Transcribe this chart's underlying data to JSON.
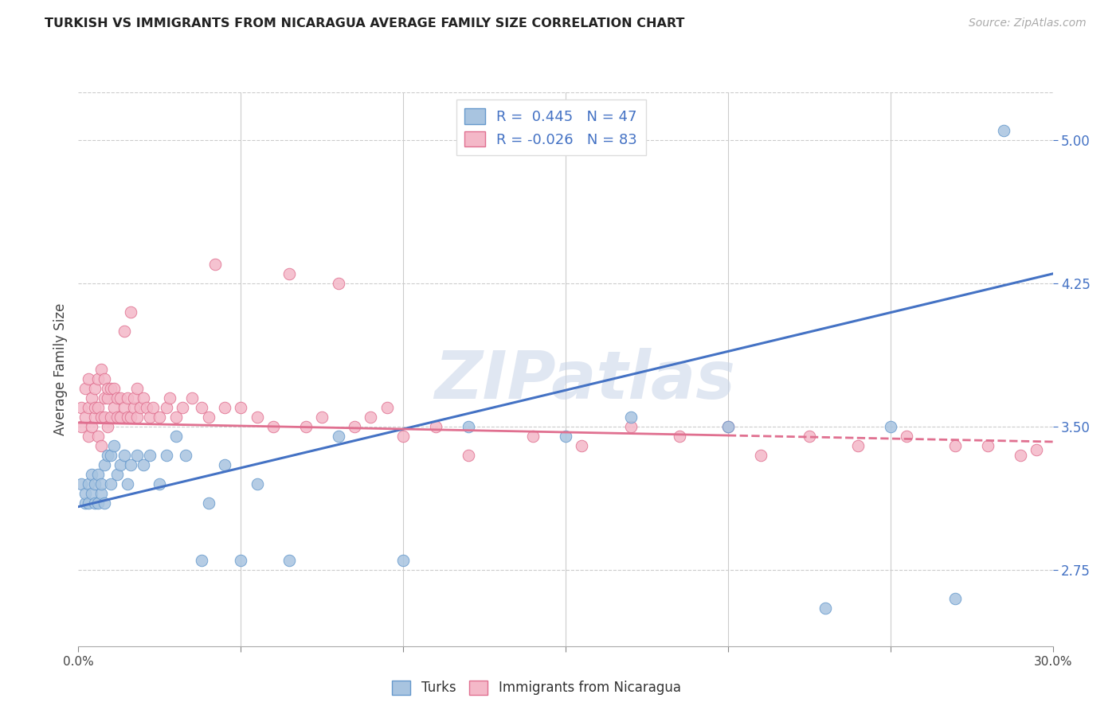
{
  "title": "TURKISH VS IMMIGRANTS FROM NICARAGUA AVERAGE FAMILY SIZE CORRELATION CHART",
  "source": "Source: ZipAtlas.com",
  "ylabel": "Average Family Size",
  "yticks": [
    2.75,
    3.5,
    4.25,
    5.0
  ],
  "xlim": [
    0.0,
    0.3
  ],
  "ylim": [
    2.35,
    5.25
  ],
  "turks_color": "#A8C4E0",
  "turks_edge": "#6699CC",
  "nicaragua_color": "#F4B8C8",
  "nicaragua_edge": "#E07090",
  "line_blue": "#4472C4",
  "line_pink": "#E07090",
  "watermark": "ZIPatlas",
  "turks_R": 0.445,
  "turks_N": 47,
  "nicaragua_R": -0.026,
  "nicaragua_N": 83,
  "turks_line_x0": 0.0,
  "turks_line_y0": 3.08,
  "turks_line_x1": 0.3,
  "turks_line_y1": 4.3,
  "nicaragua_line_x0": 0.0,
  "nicaragua_line_y0": 3.52,
  "nicaragua_line_x1": 0.3,
  "nicaragua_line_y1": 3.42,
  "turks_x": [
    0.001,
    0.002,
    0.002,
    0.003,
    0.003,
    0.004,
    0.004,
    0.005,
    0.005,
    0.006,
    0.006,
    0.007,
    0.007,
    0.008,
    0.008,
    0.009,
    0.01,
    0.01,
    0.011,
    0.012,
    0.013,
    0.014,
    0.015,
    0.016,
    0.018,
    0.02,
    0.022,
    0.025,
    0.027,
    0.03,
    0.033,
    0.038,
    0.04,
    0.045,
    0.05,
    0.055,
    0.065,
    0.08,
    0.1,
    0.12,
    0.15,
    0.17,
    0.2,
    0.23,
    0.25,
    0.27,
    0.285
  ],
  "turks_y": [
    3.2,
    3.1,
    3.15,
    3.1,
    3.2,
    3.15,
    3.25,
    3.1,
    3.2,
    3.25,
    3.1,
    3.15,
    3.2,
    3.3,
    3.1,
    3.35,
    3.2,
    3.35,
    3.4,
    3.25,
    3.3,
    3.35,
    3.2,
    3.3,
    3.35,
    3.3,
    3.35,
    3.2,
    3.35,
    3.45,
    3.35,
    2.8,
    3.1,
    3.3,
    2.8,
    3.2,
    2.8,
    3.45,
    2.8,
    3.5,
    3.45,
    3.55,
    3.5,
    2.55,
    3.5,
    2.6,
    5.05
  ],
  "nicaragua_x": [
    0.001,
    0.001,
    0.002,
    0.002,
    0.003,
    0.003,
    0.003,
    0.004,
    0.004,
    0.005,
    0.005,
    0.005,
    0.006,
    0.006,
    0.006,
    0.007,
    0.007,
    0.007,
    0.008,
    0.008,
    0.008,
    0.009,
    0.009,
    0.009,
    0.01,
    0.01,
    0.011,
    0.011,
    0.012,
    0.012,
    0.013,
    0.013,
    0.014,
    0.014,
    0.015,
    0.015,
    0.016,
    0.016,
    0.017,
    0.017,
    0.018,
    0.018,
    0.019,
    0.02,
    0.021,
    0.022,
    0.023,
    0.025,
    0.027,
    0.028,
    0.03,
    0.032,
    0.035,
    0.038,
    0.04,
    0.042,
    0.045,
    0.05,
    0.055,
    0.06,
    0.065,
    0.07,
    0.075,
    0.08,
    0.085,
    0.09,
    0.095,
    0.1,
    0.11,
    0.12,
    0.14,
    0.155,
    0.17,
    0.185,
    0.2,
    0.21,
    0.225,
    0.24,
    0.255,
    0.27,
    0.28,
    0.29,
    0.295
  ],
  "nicaragua_y": [
    3.5,
    3.6,
    3.55,
    3.7,
    3.45,
    3.6,
    3.75,
    3.5,
    3.65,
    3.55,
    3.6,
    3.7,
    3.45,
    3.6,
    3.75,
    3.4,
    3.55,
    3.8,
    3.55,
    3.65,
    3.75,
    3.5,
    3.65,
    3.7,
    3.55,
    3.7,
    3.6,
    3.7,
    3.55,
    3.65,
    3.55,
    3.65,
    4.0,
    3.6,
    3.55,
    3.65,
    3.55,
    4.1,
    3.6,
    3.65,
    3.55,
    3.7,
    3.6,
    3.65,
    3.6,
    3.55,
    3.6,
    3.55,
    3.6,
    3.65,
    3.55,
    3.6,
    3.65,
    3.6,
    3.55,
    4.35,
    3.6,
    3.6,
    3.55,
    3.5,
    4.3,
    3.5,
    3.55,
    4.25,
    3.5,
    3.55,
    3.6,
    3.45,
    3.5,
    3.35,
    3.45,
    3.4,
    3.5,
    3.45,
    3.5,
    3.35,
    3.45,
    3.4,
    3.45,
    3.4,
    3.4,
    3.35,
    3.38
  ]
}
